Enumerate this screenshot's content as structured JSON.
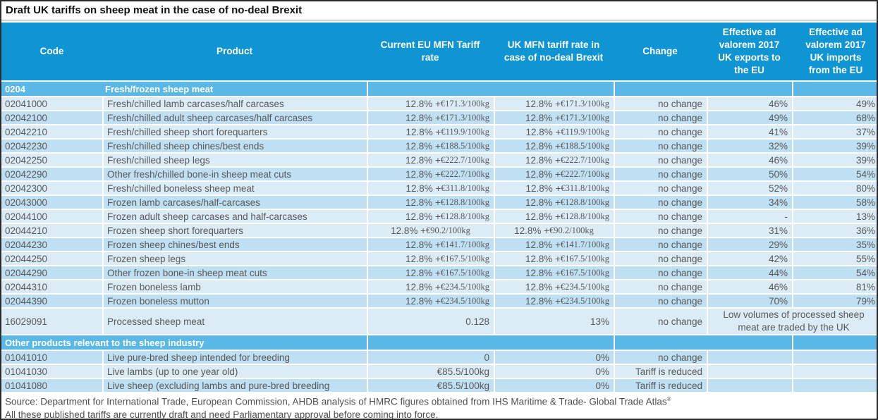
{
  "title": "Draft UK tariffs on sheep meat in the case of no-deal Brexit",
  "colors": {
    "header_blue": "#0f95d3",
    "section_blue": "#5ab8e6",
    "row_light": "#dbecf7",
    "row_dark": "#bfdff2"
  },
  "columns": [
    "Code",
    "Product",
    "Current EU MFN Tariff rate",
    "UK MFN tariff rate in case of no-deal Brexit",
    "Change",
    "Effective ad valorem 2017 UK exports to the EU",
    "Effective ad valorem 2017 UK imports from the EU"
  ],
  "sections": [
    {
      "header": {
        "code": "0204",
        "label": "Fresh/frozen sheep meat"
      },
      "rows": [
        {
          "code": "02041000",
          "product": "Fresh/chilled lamb carcases/half carcases",
          "eu_main": "12.8% + ",
          "eu_amt": "€171.3/100kg",
          "uk_main": "12.8% + ",
          "uk_amt": "€171.3/100kg",
          "change": "no change",
          "export": "46%",
          "import": "49%",
          "shade": "light"
        },
        {
          "code": "02042100",
          "product": "Fresh/chilled adult sheep carcases/half carcases",
          "eu_main": "12.8% + ",
          "eu_amt": "€171.3/100kg",
          "uk_main": "12.8% + ",
          "uk_amt": "€171.3/100kg",
          "change": "no change",
          "export": "49%",
          "import": "68%",
          "shade": "dark"
        },
        {
          "code": "02042210",
          "product": "Fresh/chilled sheep short forequarters",
          "eu_main": "12.8% + ",
          "eu_amt": "€119.9/100kg",
          "uk_main": "12.8% + ",
          "uk_amt": "€119.9/100kg",
          "change": "no change",
          "export": "41%",
          "import": "37%",
          "shade": "light"
        },
        {
          "code": "02042230",
          "product": "Fresh/chilled sheep chines/best ends",
          "eu_main": "12.8% + ",
          "eu_amt": "€188.5/100kg",
          "uk_main": "12.8% + ",
          "uk_amt": "€188.5/100kg",
          "change": "no change",
          "export": "32%",
          "import": "39%",
          "shade": "dark"
        },
        {
          "code": "02042250",
          "product": "Fresh/chilled sheep legs",
          "eu_main": "12.8% + ",
          "eu_amt": "€222.7/100kg",
          "uk_main": "12.8% + ",
          "uk_amt": "€222.7/100kg",
          "change": "no change",
          "export": "46%",
          "import": "39%",
          "shade": "light"
        },
        {
          "code": "02042290",
          "product": "Other fresh/chilled bone-in sheep meat cuts",
          "eu_main": "12.8% + ",
          "eu_amt": "€222.7/100kg",
          "uk_main": "12.8% + ",
          "uk_amt": "€222.7/100kg",
          "change": "no change",
          "export": "50%",
          "import": "54%",
          "shade": "dark"
        },
        {
          "code": "02042300",
          "product": "Fresh/chilled boneless sheep meat",
          "eu_main": "12.8% + ",
          "eu_amt": "€311.8/100kg",
          "uk_main": "12.8% + ",
          "uk_amt": "€311.8/100kg",
          "change": "no change",
          "export": "52%",
          "import": "80%",
          "shade": "light"
        },
        {
          "code": "02043000",
          "product": "Frozen lamb carcases/half-carcases",
          "eu_main": "12.8% + ",
          "eu_amt": "€128.8/100kg",
          "uk_main": "12.8% + ",
          "uk_amt": "€128.8/100kg",
          "change": "no change",
          "export": "34%",
          "import": "58%",
          "shade": "dark"
        },
        {
          "code": "02044100",
          "product": "Frozen adult sheep carcases and half-carcases",
          "eu_main": "12.8% + ",
          "eu_amt": "€128.8/100kg",
          "uk_main": "12.8% + ",
          "uk_amt": "€128.8/100kg",
          "change": "no change",
          "export": "-",
          "import": "13%",
          "shade": "light"
        },
        {
          "code": "02044210",
          "product": "Frozen sheep short forequarters",
          "eu_main": "12.8% + ",
          "eu_amt": "€90.2/100kg",
          "uk_main": "12.8% + ",
          "uk_amt": "€90.2/100kg",
          "change": "no change",
          "export": "31%",
          "import": "36%",
          "shade": "light",
          "rate_centered": true
        },
        {
          "code": "02044230",
          "product": "Frozen sheep chines/best ends",
          "eu_main": "12.8% + ",
          "eu_amt": "€141.7/100kg",
          "uk_main": "12.8% + ",
          "uk_amt": "€141.7/100kg",
          "change": "no change",
          "export": "29%",
          "import": "35%",
          "shade": "dark"
        },
        {
          "code": "02044250",
          "product": "Frozen sheep legs",
          "eu_main": "12.8% + ",
          "eu_amt": "€167.5/100kg",
          "uk_main": "12.8% + ",
          "uk_amt": "€167.5/100kg",
          "change": "no change",
          "export": "42%",
          "import": "55%",
          "shade": "light"
        },
        {
          "code": "02044290",
          "product": "Other frozen bone-in sheep meat cuts",
          "eu_main": "12.8% + ",
          "eu_amt": "€167.5/100kg",
          "uk_main": "12.8% + ",
          "uk_amt": "€167.5/100kg",
          "change": "no change",
          "export": "44%",
          "import": "54%",
          "shade": "dark"
        },
        {
          "code": "02044310",
          "product": "Frozen boneless lamb",
          "eu_main": "12.8% + ",
          "eu_amt": "€234.5/100kg",
          "uk_main": "12.8% + ",
          "uk_amt": "€234.5/100kg",
          "change": "no change",
          "export": "46%",
          "import": "81%",
          "shade": "light"
        },
        {
          "code": "02044390",
          "product": "Frozen boneless mutton",
          "eu_main": "12.8% + ",
          "eu_amt": "€234.5/100kg",
          "uk_main": "12.8% + ",
          "uk_amt": "€234.5/100kg",
          "change": "no change",
          "export": "70%",
          "import": "79%",
          "shade": "dark"
        },
        {
          "code": "16029091",
          "product": "Processed sheep meat",
          "eu_main": "0.128",
          "eu_amt": "",
          "uk_main": "13%",
          "uk_amt": "",
          "change": "no change",
          "note": "Low volumes of processed sheep meat are traded by the UK",
          "shade": "light",
          "tall": true
        }
      ]
    },
    {
      "header": {
        "code": "",
        "label": "Other products relevant to the sheep industry"
      },
      "rows": [
        {
          "code": "01041010",
          "product": "Live pure-bred sheep intended for breeding",
          "eu_main": "0",
          "eu_amt": "",
          "uk_main": "0%",
          "uk_amt": "",
          "change": "no change",
          "export": "",
          "import": "",
          "shade": "dark"
        },
        {
          "code": "01041030",
          "product": "Live lambs (up to one year old)",
          "eu_main": "€85.5/100kg",
          "eu_amt": "",
          "uk_main": "0%",
          "uk_amt": "",
          "change": "Tariff is reduced",
          "export": "",
          "import": "",
          "shade": "light"
        },
        {
          "code": "01041080",
          "product": "Live sheep (excluding lambs and pure-bred breeding",
          "eu_main": "€85.5/100kg",
          "eu_amt": "",
          "uk_main": "0%",
          "uk_amt": "",
          "change": "Tariff is reduced",
          "export": "",
          "import": "",
          "shade": "dark"
        }
      ]
    }
  ],
  "footer": {
    "source": "Source: Department for International Trade,  European Commission, AHDB analysis of HMRC figures obtained from IHS Maritime & Trade- Global Trade Atlas",
    "source_mark": "®",
    "disclaimer": "All these published tariffs are currently draft and need Parliamentary approval before coming into force."
  }
}
